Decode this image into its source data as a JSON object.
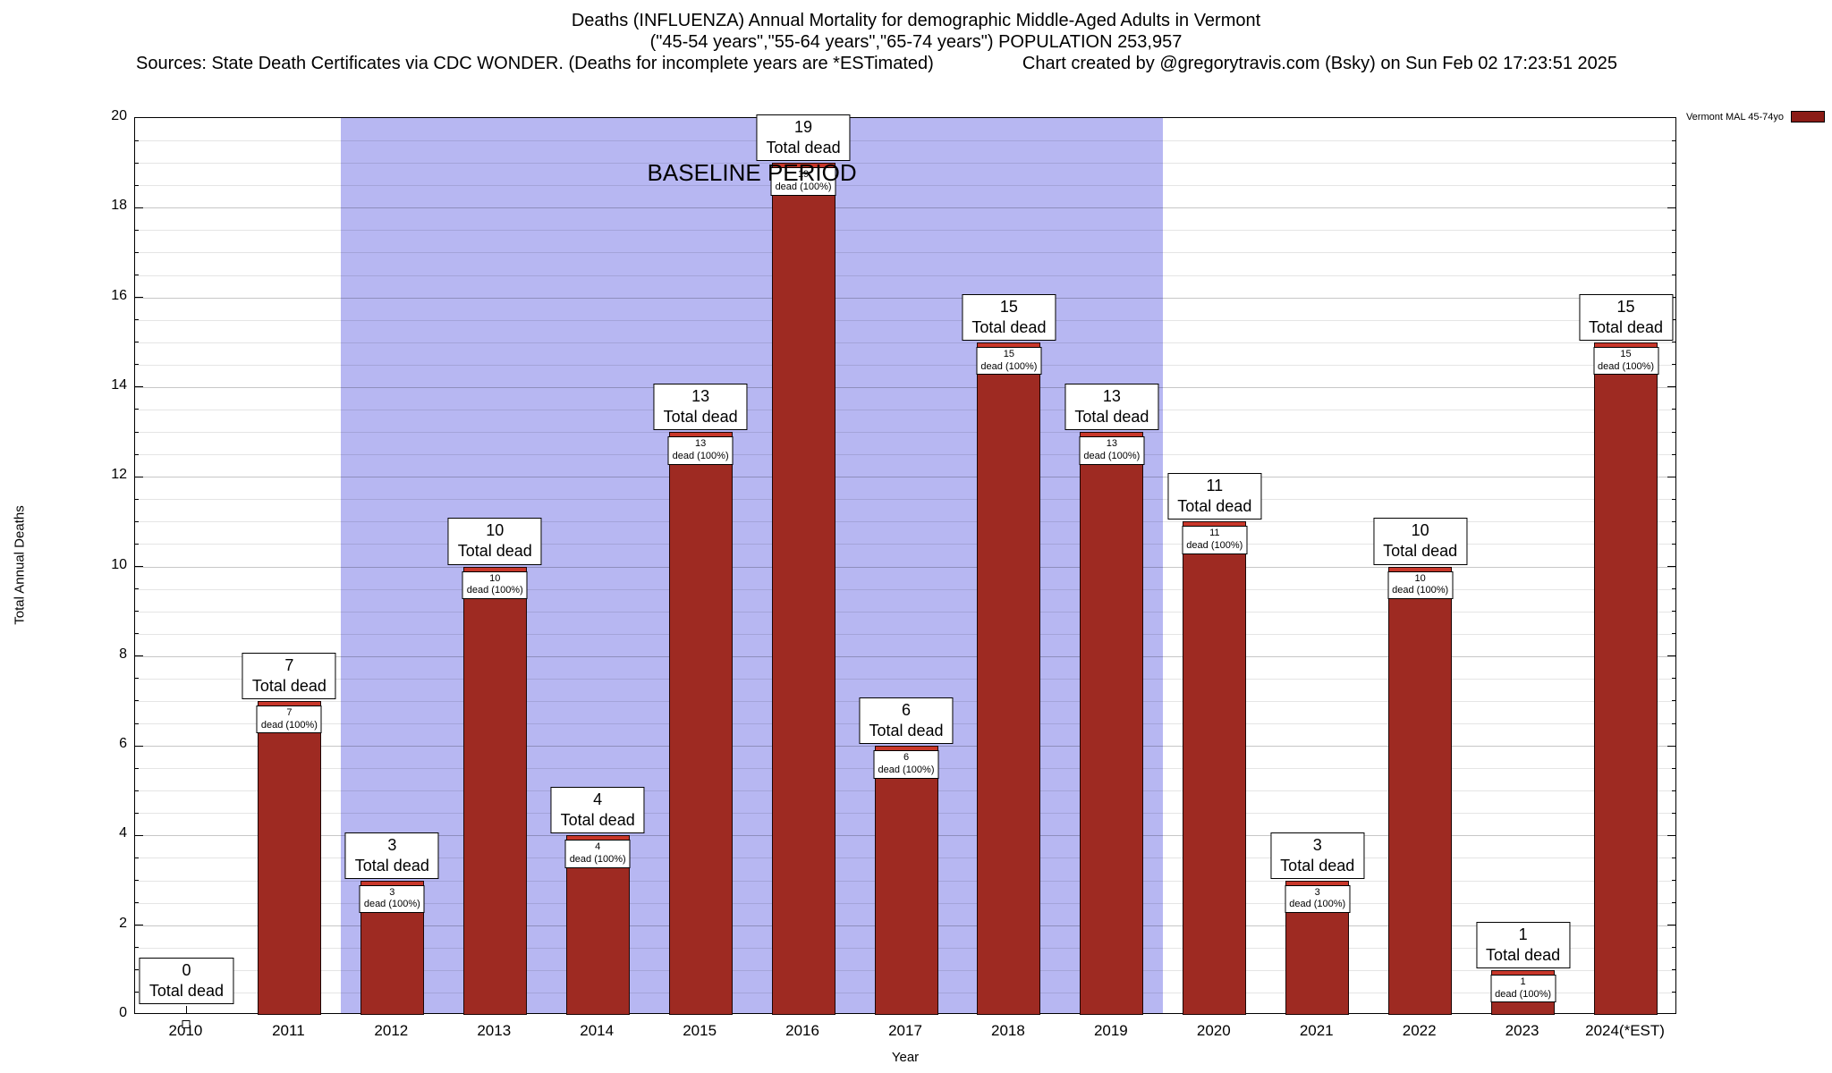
{
  "header": {
    "title_line1": "Deaths (INFLUENZA) Annual Mortality for demographic Middle-Aged Adults in Vermont",
    "title_line2": "(\"45-54 years\",\"55-64 years\",\"65-74 years\") POPULATION 253,957",
    "sources_left": "Sources: State Death Certificates via CDC WONDER. (Deaths for incomplete years are *ESTimated)",
    "credit_right": "Chart created by @gregorytravis.com (Bsky) on Sun Feb 02 17:23:51 2025"
  },
  "chart_data": {
    "type": "bar",
    "title": "Deaths (INFLUENZA) Annual Mortality for demographic Middle-Aged Adults in Vermont",
    "subtitle": "(\"45-54 years\",\"55-64 years\",\"65-74 years\") POPULATION 253,957",
    "categories": [
      "2010",
      "2011",
      "2012",
      "2013",
      "2014",
      "2015",
      "2016",
      "2017",
      "2018",
      "2019",
      "2020",
      "2021",
      "2022",
      "2023",
      "2024(*EST)"
    ],
    "values": [
      0,
      7,
      3,
      10,
      4,
      13,
      19,
      6,
      15,
      13,
      11,
      3,
      10,
      1,
      15
    ],
    "bar_label_suffix": "Total dead",
    "bar_sublabel_suffix": "dead (100%)",
    "xlabel": "Year",
    "ylabel": "Total Annual Deaths",
    "ylim": [
      0,
      20
    ],
    "ytick_step": 2,
    "grid": true,
    "baseline_region": {
      "label": "BASELINE PERIOD",
      "start_category": "2012",
      "end_category": "2019",
      "start_index": 2,
      "end_index": 9,
      "color": "#b7b7f2"
    },
    "legend": {
      "position": "top-right",
      "entries": [
        {
          "label": "Vermont MAL 45-74yo",
          "color": "#8b1c16"
        }
      ]
    },
    "colors": {
      "bar": "#9e2a22",
      "bar_cap": "#c8372a",
      "grid_minor": "rgba(0,0,0,0.10)",
      "grid_major": "rgba(0,0,0,0.22)"
    }
  }
}
